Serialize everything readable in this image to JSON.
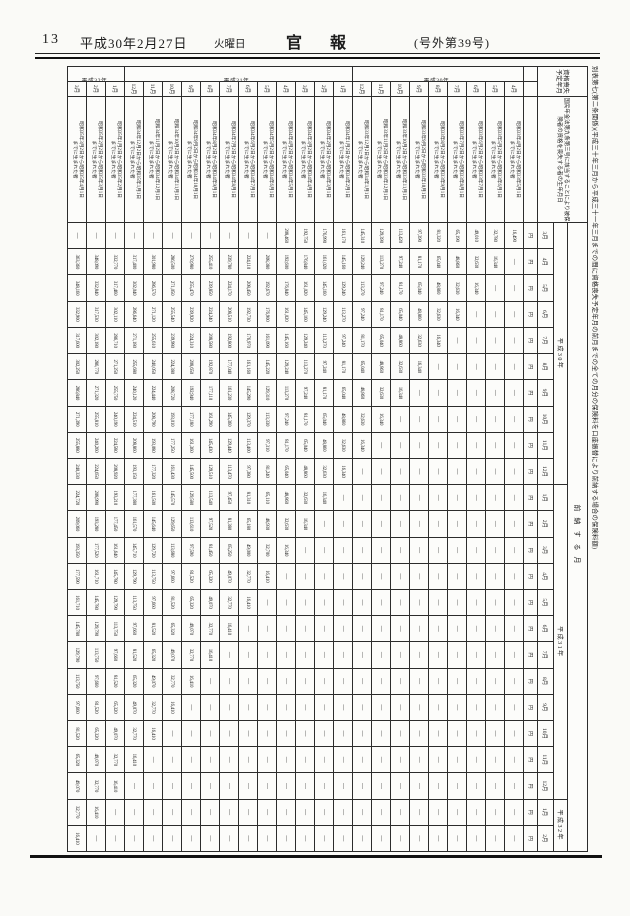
{
  "page_header": {
    "page_number": "13",
    "date": "平成30年2月27日",
    "weekday": "火曜日",
    "publication_title": "官報",
    "issue_label": "(号外第39号)"
  },
  "table": {
    "title": "別表第七(第二条関係)(平成三十年三月から平成三十一年三月までの間に資格喪失予定年月の前月までの全ての月分の保険料を口座振替により前納する場合の保険料額)",
    "corner_header": "資格喪失予定年月",
    "birthdate_header": "国民年金法第九条第三号に該当することにより被保険者の資格を喪失する者の生年月日",
    "months_group_label": "前納する月",
    "unit_label": "円",
    "month_groups": [
      {
        "year": "平成30年",
        "months": [
          "3月",
          "4月",
          "5月",
          "6月",
          "7月",
          "8月",
          "9月",
          "10月",
          "11月",
          "12月"
        ]
      },
      {
        "year": "平成31年",
        "months": [
          "1月",
          "2月",
          "3月",
          "4月",
          "5月",
          "6月",
          "7月",
          "8月",
          "9月",
          "10月",
          "11月",
          "12月"
        ]
      },
      {
        "year": "平成32年",
        "months": [
          "1月",
          "2月"
        ]
      }
    ],
    "row_year_groups": [
      {
        "label": "平成30年",
        "count": 9
      },
      {
        "label": "平成31年",
        "count": 12
      },
      {
        "label": "平成32年",
        "count": 3
      }
    ],
    "rows": [
      {
        "month": "4月",
        "birth": "昭和33年4月2日から昭和33年5月1日までに生まれた者",
        "values": [
          "16,490",
          "—",
          "—",
          "—",
          "—",
          "—",
          "—",
          "—",
          "—",
          "—",
          "—",
          "—",
          "—",
          "—",
          "—",
          "—",
          "—",
          "—",
          "—",
          "—",
          "—",
          "—",
          "—",
          "—"
        ]
      },
      {
        "month": "5月",
        "birth": "昭和33年5月2日から昭和33年6月1日までに生まれた者",
        "values": [
          "32,780",
          "16,340",
          "—",
          "—",
          "—",
          "—",
          "—",
          "—",
          "—",
          "—",
          "—",
          "—",
          "—",
          "—",
          "—",
          "—",
          "—",
          "—",
          "—",
          "—",
          "—",
          "—",
          "—",
          "—"
        ]
      },
      {
        "month": "6月",
        "birth": "昭和33年6月2日から昭和33年7月1日までに生まれた者",
        "values": [
          "49,010",
          "32,630",
          "16,340",
          "—",
          "—",
          "—",
          "—",
          "—",
          "—",
          "—",
          "—",
          "—",
          "—",
          "—",
          "—",
          "—",
          "—",
          "—",
          "—",
          "—",
          "—",
          "—",
          "—",
          "—"
        ]
      },
      {
        "month": "7月",
        "birth": "昭和33年7月2日から昭和33年8月1日までに生まれた者",
        "values": [
          "65,190",
          "48,860",
          "32,630",
          "16,340",
          "—",
          "—",
          "—",
          "—",
          "—",
          "—",
          "—",
          "—",
          "—",
          "—",
          "—",
          "—",
          "—",
          "—",
          "—",
          "—",
          "—",
          "—",
          "—",
          "—"
        ]
      },
      {
        "month": "8月",
        "birth": "昭和33年8月2日から昭和33年9月1日までに生まれた者",
        "values": [
          "81,320",
          "65,040",
          "48,860",
          "32,630",
          "16,340",
          "—",
          "—",
          "—",
          "—",
          "—",
          "—",
          "—",
          "—",
          "—",
          "—",
          "—",
          "—",
          "—",
          "—",
          "—",
          "—",
          "—",
          "—",
          "—"
        ]
      },
      {
        "month": "9月",
        "birth": "昭和33年9月2日から昭和33年10月1日までに生まれた者",
        "values": [
          "97,390",
          "81,170",
          "65,040",
          "48,860",
          "32,630",
          "16,340",
          "—",
          "—",
          "—",
          "—",
          "—",
          "—",
          "—",
          "—",
          "—",
          "—",
          "—",
          "—",
          "—",
          "—",
          "—",
          "—",
          "—",
          "—"
        ]
      },
      {
        "month": "10月",
        "birth": "昭和33年10月2日から昭和33年11月1日までに生まれた者",
        "values": [
          "113,420",
          "97,240",
          "81,170",
          "65,040",
          "48,860",
          "32,630",
          "16,340",
          "—",
          "—",
          "—",
          "—",
          "—",
          "—",
          "—",
          "—",
          "—",
          "—",
          "—",
          "—",
          "—",
          "—",
          "—",
          "—",
          "—"
        ]
      },
      {
        "month": "11月",
        "birth": "昭和33年11月2日から昭和33年12月1日までに生まれた者",
        "values": [
          "129,390",
          "113,270",
          "97,240",
          "81,170",
          "65,040",
          "48,860",
          "32,630",
          "16,340",
          "—",
          "—",
          "—",
          "—",
          "—",
          "—",
          "—",
          "—",
          "—",
          "—",
          "—",
          "—",
          "—",
          "—",
          "—",
          "—"
        ]
      },
      {
        "month": "12月",
        "birth": "昭和33年12月2日から昭和34年1月1日までに生まれた者",
        "values": [
          "145,310",
          "129,240",
          "113,270",
          "97,240",
          "81,170",
          "65,040",
          "48,860",
          "32,630",
          "16,340",
          "—",
          "—",
          "—",
          "—",
          "—",
          "—",
          "—",
          "—",
          "—",
          "—",
          "—",
          "—",
          "—",
          "—",
          "—"
        ]
      },
      {
        "month": "1月",
        "birth": "昭和34年1月2日から昭和34年2月1日までに生まれた者",
        "values": [
          "161,170",
          "145,160",
          "129,240",
          "113,270",
          "97,240",
          "81,170",
          "65,040",
          "48,860",
          "32,630",
          "16,340",
          "—",
          "—",
          "—",
          "—",
          "—",
          "—",
          "—",
          "—",
          "—",
          "—",
          "—",
          "—",
          "—",
          "—"
        ]
      },
      {
        "month": "2月",
        "birth": "昭和34年2月2日から昭和34年3月1日までに生まれた者",
        "values": [
          "176,990",
          "161,020",
          "145,160",
          "129,240",
          "113,270",
          "97,240",
          "81,170",
          "65,040",
          "48,860",
          "32,630",
          "16,340",
          "—",
          "—",
          "—",
          "—",
          "—",
          "—",
          "—",
          "—",
          "—",
          "—",
          "—",
          "—",
          "—"
        ]
      },
      {
        "month": "3月",
        "birth": "昭和34年3月2日から昭和34年4月1日までに生まれた者",
        "values": [
          "192,750",
          "176,840",
          "161,020",
          "145,160",
          "129,240",
          "113,270",
          "97,240",
          "81,170",
          "65,040",
          "48,860",
          "32,630",
          "16,340",
          "—",
          "—",
          "—",
          "—",
          "—",
          "—",
          "—",
          "—",
          "—",
          "—",
          "—",
          "—"
        ]
      },
      {
        "month": "4月",
        "birth": "昭和34年4月2日から昭和34年5月1日までに生まれた者",
        "values": [
          "208,460",
          "192,600",
          "176,840",
          "161,020",
          "145,160",
          "129,240",
          "113,270",
          "97,240",
          "81,170",
          "65,040",
          "48,860",
          "32,630",
          "16,340",
          "—",
          "—",
          "—",
          "—",
          "—",
          "—",
          "—",
          "—",
          "—",
          "—",
          "—"
        ]
      },
      {
        "month": "5月",
        "birth": "昭和34年5月2日から昭和34年6月1日までに生まれた者",
        "values": [
          "—",
          "208,380",
          "192,670",
          "176,900",
          "161,090",
          "145,220",
          "129,310",
          "113,330",
          "97,310",
          "81,240",
          "65,110",
          "48,930",
          "32,700",
          "16,410",
          "—",
          "—",
          "—",
          "—",
          "—",
          "—",
          "—",
          "—",
          "—",
          "—"
        ]
      },
      {
        "month": "6月",
        "birth": "昭和34年6月2日から昭和34年7月1日までに生まれた者",
        "values": [
          "—",
          "224,110",
          "208,450",
          "192,730",
          "176,970",
          "161,160",
          "145,290",
          "129,370",
          "113,400",
          "97,380",
          "81,310",
          "65,180",
          "49,000",
          "32,770",
          "16,410",
          "—",
          "—",
          "—",
          "—",
          "—",
          "—",
          "—",
          "—",
          "—"
        ]
      },
      {
        "month": "7月",
        "birth": "昭和34年7月2日から昭和34年8月1日までに生まれた者",
        "values": [
          "—",
          "239,780",
          "224,170",
          "208,510",
          "192,800",
          "177,040",
          "161,230",
          "145,360",
          "129,440",
          "113,470",
          "97,450",
          "81,380",
          "65,250",
          "49,070",
          "32,770",
          "16,410",
          "—",
          "—",
          "—",
          "—",
          "—",
          "—",
          "—",
          "—"
        ]
      },
      {
        "month": "8月",
        "birth": "昭和34年8月2日から昭和34年9月1日までに生まれた者",
        "values": [
          "—",
          "255,410",
          "239,850",
          "224,240",
          "208,580",
          "192,870",
          "177,110",
          "161,290",
          "145,430",
          "129,510",
          "113,540",
          "97,520",
          "81,450",
          "65,320",
          "49,070",
          "32,770",
          "16,410",
          "—",
          "—",
          "—",
          "—",
          "—",
          "—",
          "—"
        ]
      },
      {
        "month": "9月",
        "birth": "昭和34年9月2日から昭和34年10月1日までに生まれた者",
        "values": [
          "—",
          "270,980",
          "255,470",
          "239,920",
          "224,310",
          "208,650",
          "192,940",
          "177,180",
          "161,360",
          "145,500",
          "129,580",
          "113,610",
          "97,590",
          "81,520",
          "65,320",
          "49,070",
          "32,770",
          "16,410",
          "—",
          "—",
          "—",
          "—",
          "—",
          "—"
        ]
      },
      {
        "month": "10月",
        "birth": "昭和34年10月2日から昭和34年11月1日までに生まれた者",
        "values": [
          "—",
          "286,500",
          "271,050",
          "255,540",
          "239,980",
          "224,380",
          "208,720",
          "193,010",
          "177,250",
          "161,430",
          "145,570",
          "129,650",
          "113,680",
          "97,660",
          "81,520",
          "65,320",
          "49,070",
          "32,770",
          "16,410",
          "—",
          "—",
          "—",
          "—",
          "—"
        ]
      },
      {
        "month": "11月",
        "birth": "昭和34年11月2日から昭和34年12月1日までに生まれた者",
        "values": [
          "—",
          "301,980",
          "286,570",
          "271,120",
          "255,610",
          "240,050",
          "224,440",
          "208,790",
          "193,080",
          "177,320",
          "161,500",
          "145,640",
          "129,720",
          "113,750",
          "97,660",
          "81,520",
          "65,320",
          "49,070",
          "32,770",
          "16,410",
          "—",
          "—",
          "—",
          "—"
        ]
      },
      {
        "month": "12月",
        "birth": "昭和34年12月2日から昭和35年1月1日までに生まれた者",
        "values": [
          "—",
          "317,400",
          "302,040",
          "286,640",
          "271,180",
          "255,680",
          "240,120",
          "224,510",
          "208,860",
          "193,150",
          "177,380",
          "161,570",
          "145,710",
          "129,790",
          "113,750",
          "97,660",
          "81,520",
          "65,320",
          "49,070",
          "32,770",
          "16,410",
          "—",
          "—",
          "—"
        ]
      },
      {
        "month": "1月",
        "birth": "昭和35年1月2日から昭和35年2月1日までに生まれた者",
        "values": [
          "—",
          "332,770",
          "317,460",
          "302,110",
          "286,710",
          "271,250",
          "255,750",
          "240,190",
          "224,580",
          "208,920",
          "193,210",
          "177,450",
          "161,640",
          "145,780",
          "129,790",
          "113,750",
          "97,660",
          "81,520",
          "65,320",
          "49,070",
          "32,770",
          "16,410",
          "—",
          "—"
        ]
      },
      {
        "month": "2月",
        "birth": "昭和35年2月2日から昭和35年3月1日までに生まれた者",
        "values": [
          "—",
          "348,090",
          "332,840",
          "317,530",
          "302,180",
          "286,770",
          "271,320",
          "255,810",
          "240,260",
          "224,650",
          "208,990",
          "193,280",
          "177,520",
          "161,710",
          "145,780",
          "129,790",
          "113,750",
          "97,660",
          "81,520",
          "65,320",
          "49,070",
          "32,770",
          "16,410",
          "—"
        ]
      },
      {
        "month": "3月",
        "birth": "昭和35年3月2日から昭和35年4月1日までに生まれた者",
        "values": [
          "—",
          "363,360",
          "348,160",
          "332,900",
          "317,600",
          "302,250",
          "286,840",
          "271,390",
          "255,880",
          "240,330",
          "224,720",
          "209,060",
          "193,350",
          "177,590",
          "161,710",
          "145,780",
          "129,790",
          "113,750",
          "97,660",
          "81,520",
          "65,320",
          "49,070",
          "32,770",
          "16,410"
        ]
      }
    ]
  }
}
